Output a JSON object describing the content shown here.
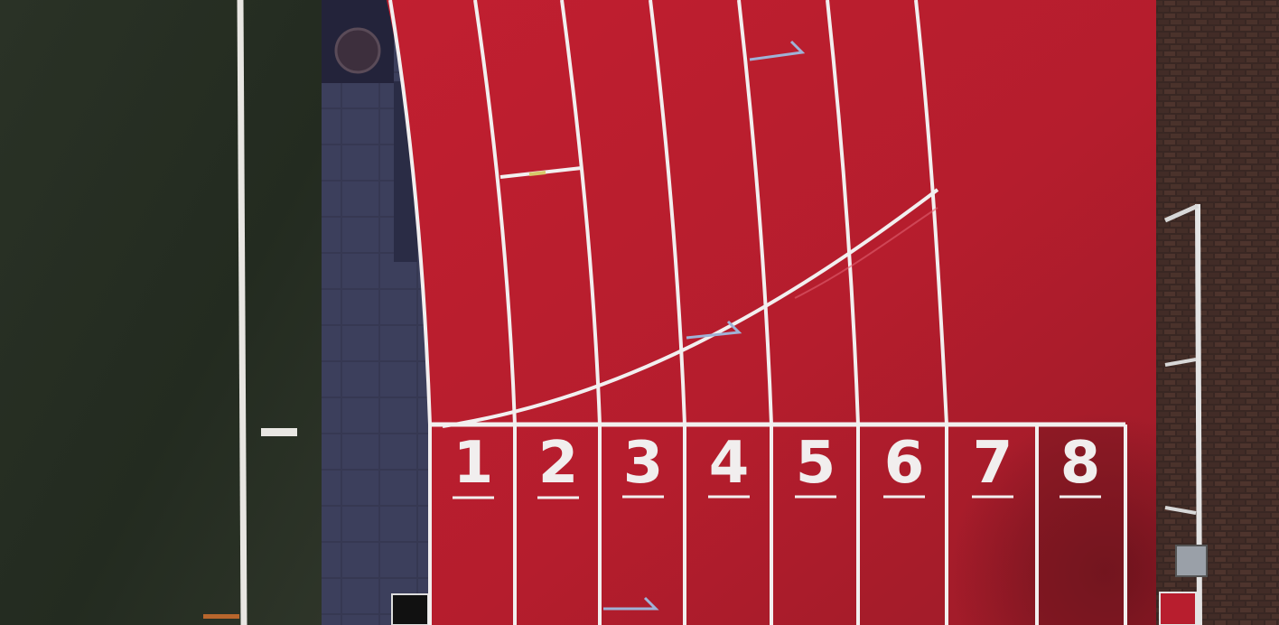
{
  "scene": {
    "description_free": true,
    "lanes": [
      {
        "number": "1"
      },
      {
        "number": "2"
      },
      {
        "number": "3"
      },
      {
        "number": "4"
      },
      {
        "number": "5"
      },
      {
        "number": "6"
      },
      {
        "number": "7"
      },
      {
        "number": "8"
      }
    ],
    "colors": {
      "grass": "#2b3326",
      "grass_dark": "#232a20",
      "track": "#b81e2e",
      "track_dark": "#8c1b25",
      "lane_line": "#f2efef",
      "curb_tiles": "#3a3b55",
      "brick": "#4b352e",
      "arrow": "#9fb2d6"
    }
  }
}
